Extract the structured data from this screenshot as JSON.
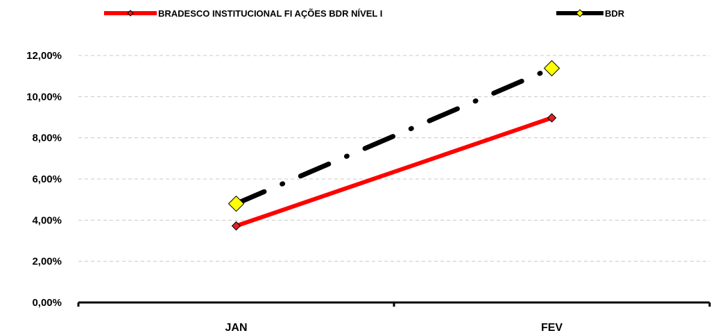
{
  "chart_data": {
    "type": "line",
    "categories": [
      "JAN",
      "FEV"
    ],
    "series": [
      {
        "name": "BRADESCO INSTITUCIONAL FI AÇÕES BDR NÍVEL I",
        "values": [
          3.72,
          8.97
        ],
        "color": "#ff0000",
        "line_style": "solid",
        "marker": "small-diamond",
        "marker_fill": "#e02020"
      },
      {
        "name": "BDR",
        "values": [
          4.8,
          11.38
        ],
        "color": "#000000",
        "line_style": "dash-dot",
        "marker": "large-diamond",
        "marker_fill": "#ffff00"
      }
    ],
    "y_ticks": [
      "0,00%",
      "2,00%",
      "4,00%",
      "6,00%",
      "8,00%",
      "10,00%",
      "12,00%"
    ],
    "ylim": [
      0,
      12
    ],
    "grid": true,
    "legend_position": "top",
    "title": "",
    "xlabel": "",
    "ylabel": ""
  }
}
